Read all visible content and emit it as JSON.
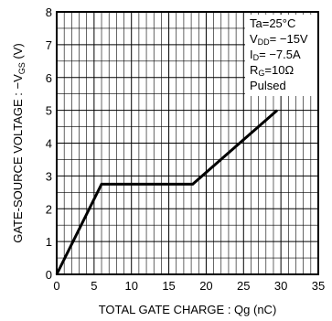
{
  "chart_data": {
    "type": "line",
    "title": "",
    "xlabel": "TOTAL GATE CHARGE : Qg (nC)",
    "ylabel_parts": {
      "main": "GATE-SOURCE VOLTAGE : −V",
      "sub": "GS",
      "unit": " (V)"
    },
    "xlim": [
      0,
      35
    ],
    "ylim": [
      0,
      8
    ],
    "x_ticks": [
      0,
      5,
      10,
      15,
      20,
      25,
      30,
      35
    ],
    "y_ticks": [
      0,
      1,
      2,
      3,
      4,
      5,
      6,
      7,
      8
    ],
    "grid": true,
    "series": [
      {
        "x": [
          0,
          6,
          18.2,
          29.5
        ],
        "y": [
          0,
          2.75,
          2.75,
          5.0
        ]
      }
    ],
    "annotation": {
      "placement": "top-right",
      "lines": [
        {
          "main": "Ta=25°C",
          "sub": "",
          "rest": ""
        },
        {
          "main": "V",
          "sub": "DD",
          "rest": "= −15V"
        },
        {
          "main": "I",
          "sub": "D",
          "rest": "= −7.5A"
        },
        {
          "main": "R",
          "sub": "G",
          "rest": "=10Ω"
        },
        {
          "main": "Pulsed",
          "sub": "",
          "rest": ""
        }
      ]
    }
  }
}
